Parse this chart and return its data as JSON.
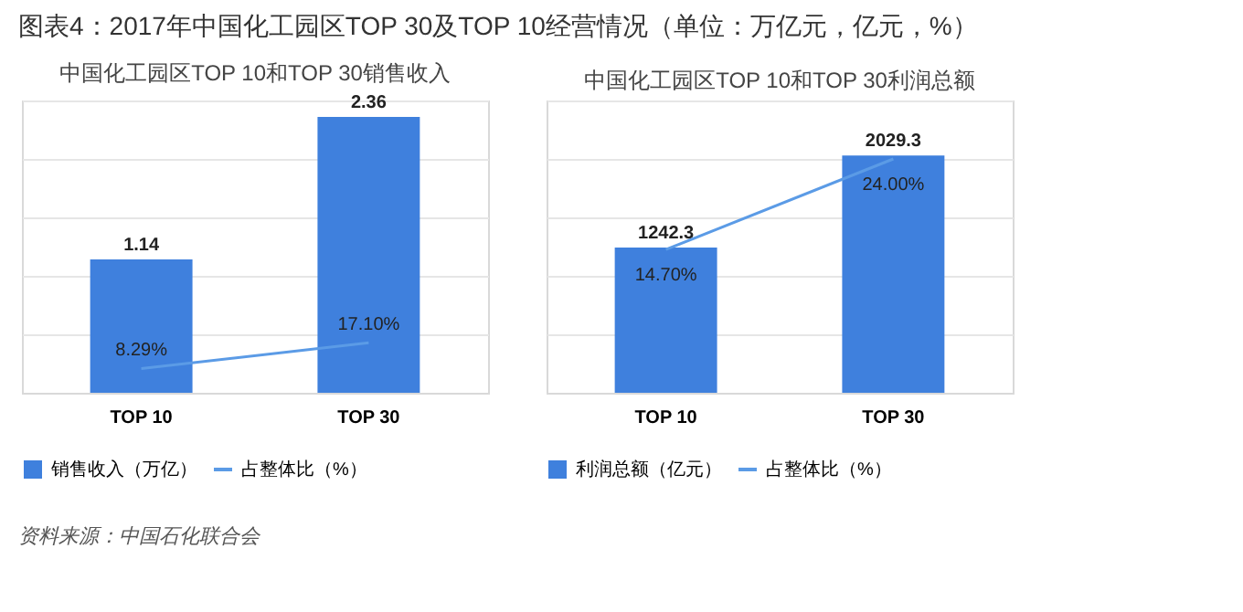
{
  "chart_data": [
    {
      "type": "bar",
      "title": "图表4：2017年中国化工园区TOP 30及TOP 10经营情况（单位：万亿元，亿元，%）",
      "subtitle": "中国化工园区TOP 10和TOP 30销售收入",
      "categories": [
        "TOP 10",
        "TOP 30"
      ],
      "series": [
        {
          "name": "销售收入（万亿）",
          "color": "#3f80dd",
          "values": [
            1.14,
            2.36
          ],
          "value_labels": [
            "1.14",
            "2.36"
          ]
        },
        {
          "name": "占整体比（%）",
          "type": "line",
          "axis": "y2",
          "color": "#5b9be6",
          "values": [
            8.29,
            17.1
          ],
          "value_labels": [
            "8.29%",
            "17.10%"
          ]
        }
      ],
      "ylim": [
        0,
        2.5
      ],
      "yticks": [
        {
          "value": 0,
          "label": null
        },
        {
          "value": 0.5,
          "label": null
        },
        {
          "value": 1,
          "label": null
        },
        {
          "value": 1.5,
          "label": null
        },
        {
          "value": 2,
          "label": null
        },
        {
          "value": 2.5,
          "label": null
        }
      ],
      "y2lim": [
        0,
        100
      ],
      "grid": "y",
      "tick_labels": "x",
      "legend": "bottom"
    },
    {
      "type": "bar",
      "title": "中国化工园区TOP 10和TOP 30利润总额",
      "categories": [
        "TOP 10",
        "TOP 30"
      ],
      "series": [
        {
          "name": "利润总额（亿元）",
          "color": "#3f80dd",
          "values": [
            1242.3,
            2029.3
          ],
          "value_labels": [
            "1242.3",
            "2029.3"
          ]
        },
        {
          "name": "占整体比（%）",
          "type": "line",
          "axis": "y2",
          "color": "#5b9be6",
          "values": [
            14.7,
            24.0
          ],
          "value_labels": [
            "14.70%",
            "24.00%"
          ]
        }
      ],
      "ylim": [
        0,
        2500
      ],
      "yticks": [
        {
          "value": 0,
          "label": null
        },
        {
          "value": 500,
          "label": null
        },
        {
          "value": 1000,
          "label": null
        },
        {
          "value": 1500,
          "label": null
        },
        {
          "value": 2000,
          "label": null
        },
        {
          "value": 2500,
          "label": null
        }
      ],
      "y2lim": [
        0,
        30
      ],
      "grid": "y",
      "tick_labels": "x",
      "legend": "bottom",
      "annotations": [
        "资料来源：中国石化联合会"
      ]
    }
  ]
}
